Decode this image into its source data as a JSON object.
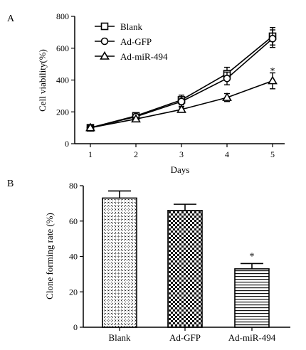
{
  "chart_data": [
    {
      "type": "line",
      "panel_label": "A",
      "xlabel": "Days",
      "ylabel": "Cell viability(%)",
      "x": [
        1,
        2,
        3,
        4,
        5
      ],
      "xticks": [
        "1",
        "2",
        "3",
        "4",
        "5"
      ],
      "ylim": [
        0,
        800
      ],
      "yticks": [
        "0",
        "200",
        "400",
        "600",
        "800"
      ],
      "legend_position": "top-left",
      "series": [
        {
          "name": "Blank",
          "marker": "square",
          "values": [
            100,
            175,
            275,
            440,
            675
          ],
          "errors": [
            8,
            12,
            30,
            40,
            55
          ]
        },
        {
          "name": "Ad-GFP",
          "marker": "circle",
          "values": [
            100,
            170,
            265,
            410,
            660
          ],
          "errors": [
            8,
            12,
            30,
            40,
            55
          ]
        },
        {
          "name": "Ad-miR-494",
          "marker": "triangle",
          "values": [
            100,
            155,
            215,
            290,
            395
          ],
          "errors": [
            8,
            10,
            15,
            25,
            50
          ]
        }
      ],
      "annotations": [
        {
          "text": "*",
          "x": 5,
          "y": 455
        }
      ]
    },
    {
      "type": "bar",
      "panel_label": "B",
      "ylabel": "Clone forming rate (%)",
      "categories": [
        "Blank",
        "Ad-GFP",
        "Ad-miR-494"
      ],
      "values": [
        73,
        66,
        33
      ],
      "errors": [
        4,
        3.5,
        3
      ],
      "ylim": [
        0,
        80
      ],
      "yticks": [
        "0",
        "20",
        "40",
        "60",
        "80"
      ],
      "annotations": [
        {
          "text": "*",
          "category": "Ad-miR-494"
        }
      ]
    }
  ]
}
